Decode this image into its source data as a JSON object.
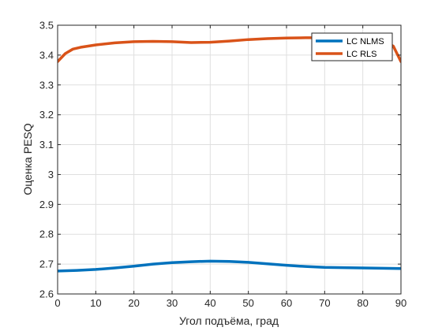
{
  "chart_data": {
    "type": "line",
    "xlabel": "Угол подъёма, град",
    "ylabel": "Оценка PESQ",
    "xlim": [
      0,
      90
    ],
    "ylim": [
      2.6,
      3.5
    ],
    "xticks": [
      0,
      10,
      20,
      30,
      40,
      50,
      60,
      70,
      80,
      90
    ],
    "yticks": [
      2.6,
      2.7,
      2.8,
      2.9,
      3,
      3.1,
      3.2,
      3.3,
      3.4,
      3.5
    ],
    "xtick_labels": [
      "0",
      "10",
      "20",
      "30",
      "40",
      "50",
      "60",
      "70",
      "80",
      "90"
    ],
    "ytick_labels": [
      "2.6",
      "2.7",
      "2.8",
      "2.9",
      "3",
      "3.1",
      "3.2",
      "3.3",
      "3.4",
      "3.5"
    ],
    "grid": true,
    "legend_position": "top-right",
    "series": [
      {
        "name": "LC NLMS",
        "color": "#0072bd",
        "x": [
          0,
          5,
          10,
          15,
          20,
          25,
          30,
          35,
          40,
          45,
          50,
          55,
          60,
          65,
          70,
          75,
          80,
          85,
          90
        ],
        "y": [
          2.677,
          2.679,
          2.682,
          2.687,
          2.693,
          2.7,
          2.705,
          2.708,
          2.71,
          2.709,
          2.706,
          2.701,
          2.696,
          2.692,
          2.689,
          2.688,
          2.687,
          2.686,
          2.685
        ]
      },
      {
        "name": "LC RLS",
        "color": "#d95319",
        "x": [
          0,
          2,
          4,
          6,
          8,
          10,
          15,
          20,
          25,
          30,
          35,
          40,
          45,
          50,
          55,
          60,
          65,
          70,
          75,
          80,
          85,
          88,
          90
        ],
        "y": [
          3.378,
          3.405,
          3.42,
          3.426,
          3.43,
          3.434,
          3.441,
          3.445,
          3.446,
          3.445,
          3.442,
          3.443,
          3.447,
          3.452,
          3.455,
          3.457,
          3.458,
          3.458,
          3.458,
          3.455,
          3.45,
          3.43,
          3.378
        ]
      }
    ]
  }
}
